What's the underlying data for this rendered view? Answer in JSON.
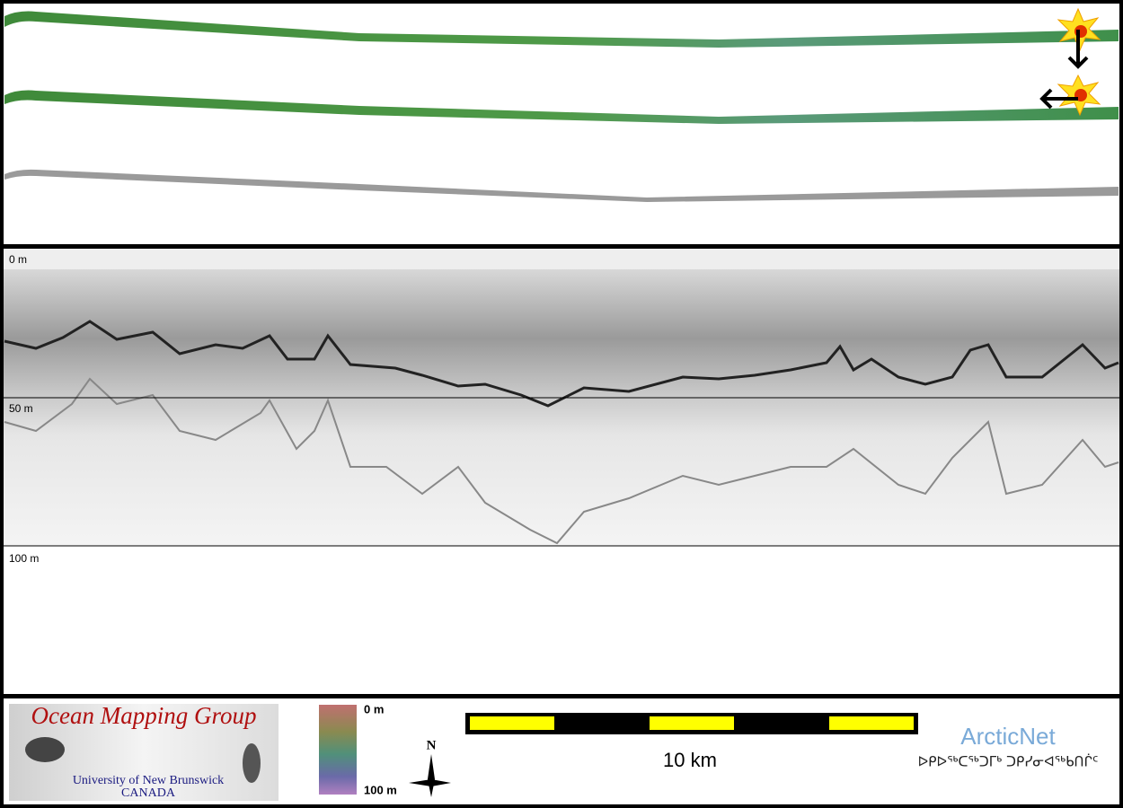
{
  "profile": {
    "depth_labels": [
      "0 m",
      "50 m",
      "100 m"
    ]
  },
  "footer": {
    "logo": {
      "title": "Ocean Mapping Group",
      "university": "University of New Brunswick",
      "country": "CANADA"
    },
    "colorbar": {
      "top": "0 m",
      "bottom": "100 m"
    },
    "compass": "N",
    "scale": "10 km",
    "partner": {
      "name": "ArcticNet",
      "syllabics": "ᐅᑭᐅᖅᑕᖅᑐᒥᒃ ᑐᑭᓯᓂᐊᖅᑲᑎᒌᑦ"
    }
  }
}
